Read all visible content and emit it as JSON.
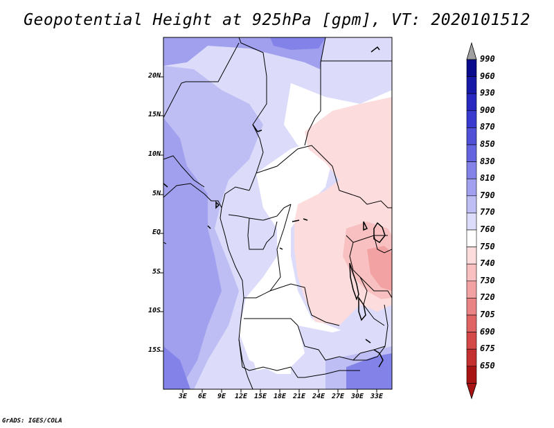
{
  "title": "Geopotential Height at 925hPa [gpm], VT: 2020101512",
  "credit": "GrADS: IGES/COLA",
  "lat_labels": [
    "20N",
    "15N",
    "10N",
    "5N",
    "EQ",
    "5S",
    "10S",
    "15S"
  ],
  "lon_labels": [
    "3E",
    "6E",
    "9E",
    "12E",
    "15E",
    "18E",
    "21E",
    "24E",
    "27E",
    "30E",
    "33E"
  ],
  "colorbar": {
    "levels": [
      "990",
      "960",
      "930",
      "900",
      "870",
      "850",
      "830",
      "810",
      "790",
      "770",
      "760",
      "750",
      "740",
      "730",
      "720",
      "705",
      "690",
      "675",
      "650"
    ],
    "colors": [
      "#0a0a8c",
      "#1818a8",
      "#2828c0",
      "#3a3ad0",
      "#5050d8",
      "#6464e0",
      "#8282e8",
      "#a0a0ee",
      "#bebef4",
      "#dcdcfa",
      "#ffffff",
      "#fcdcdc",
      "#f8c0c0",
      "#f2a2a2",
      "#ea8484",
      "#e06464",
      "#d44848",
      "#c43030",
      "#a81414"
    ],
    "arrow_top_color": "#a0a0a0",
    "arrow_bottom_color": "#a81414"
  }
}
